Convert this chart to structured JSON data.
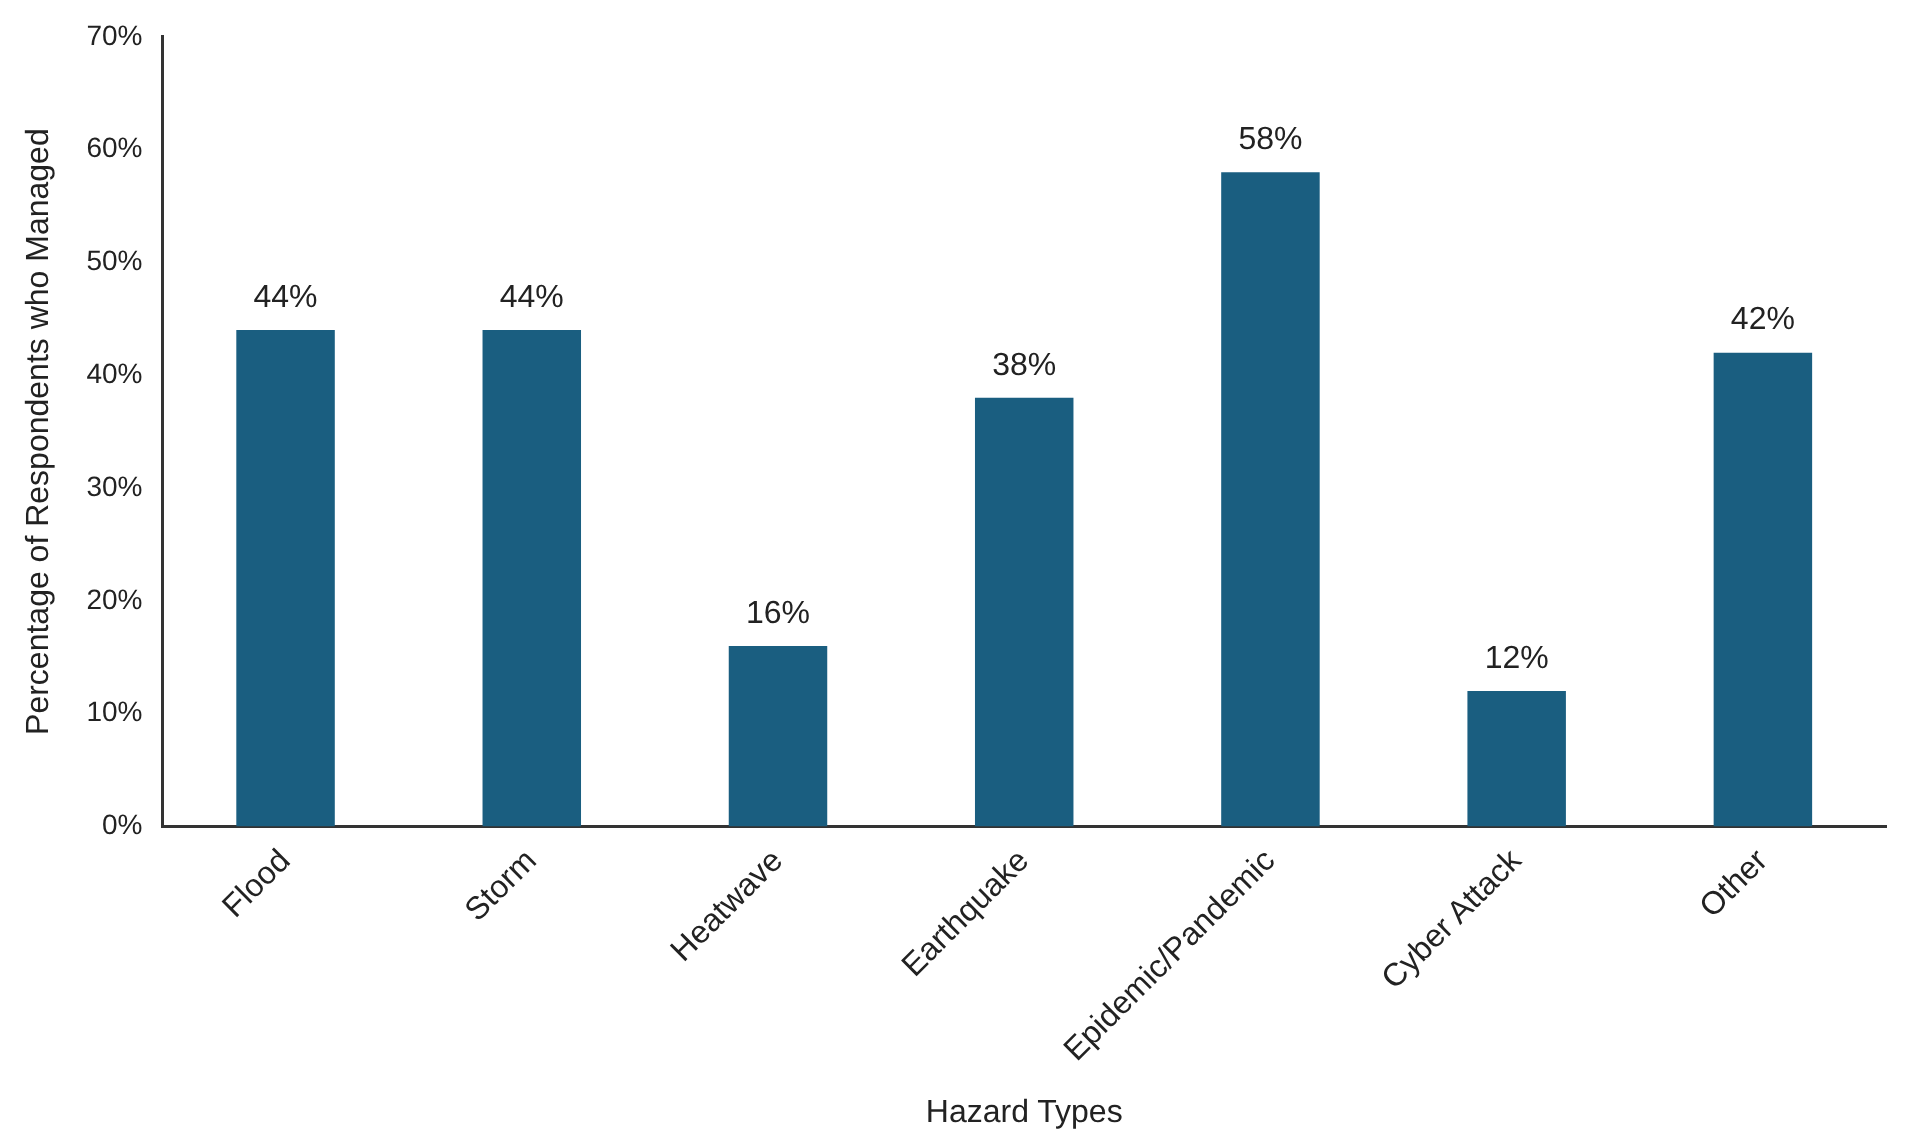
{
  "chart_data": {
    "type": "bar",
    "xlabel": "Hazard Types",
    "ylabel": "Percentage of Respondents who Managed",
    "categories": [
      "Flood",
      "Storm",
      "Heatwave",
      "Earthquake",
      "Epidemic/Pandemic",
      "Cyber Attack",
      "Other"
    ],
    "values": [
      44,
      44,
      16,
      38,
      58,
      12,
      42
    ],
    "value_labels": [
      "44%",
      "44%",
      "16%",
      "38%",
      "58%",
      "12%",
      "42%"
    ],
    "color": "#1a5e80",
    "ylim": [
      0,
      70
    ],
    "yticks": [
      {
        "value": 0,
        "label": "0%"
      },
      {
        "value": 10,
        "label": "10%"
      },
      {
        "value": 20,
        "label": "20%"
      },
      {
        "value": 30,
        "label": "30%"
      },
      {
        "value": 40,
        "label": "40%"
      },
      {
        "value": 50,
        "label": "50%"
      },
      {
        "value": 60,
        "label": "60%"
      },
      {
        "value": 70,
        "label": "70%"
      }
    ],
    "grid": false,
    "legend": false
  }
}
